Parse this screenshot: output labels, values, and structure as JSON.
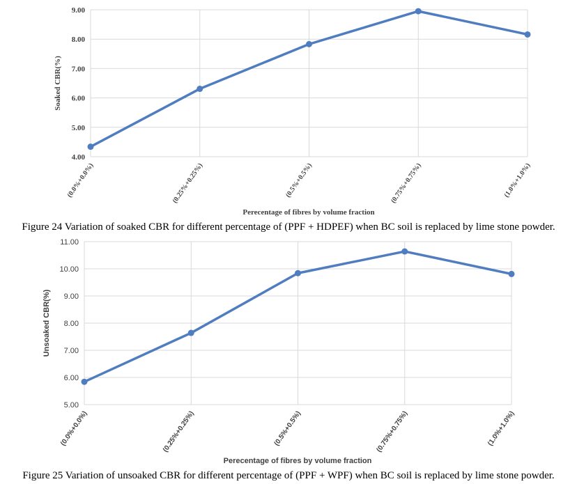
{
  "chart_data": [
    {
      "type": "line",
      "categories": [
        "(0.0%+0.0%)",
        "(0.25%+0.25%)",
        "(0.5%+0.5%)",
        "(0.75%+0.75%)",
        "(1.0%+1.0%)"
      ],
      "series": [
        {
          "values": [
            4.34,
            6.31,
            7.83,
            8.95,
            8.16
          ]
        }
      ],
      "xlabel": "Perecentage of fibres by volume fraction",
      "ylabel": "Soaked CBR(%)",
      "yticks": [
        "4.00",
        "5.00",
        "6.00",
        "7.00",
        "8.00",
        "9.00"
      ],
      "ylim": [
        4,
        9
      ],
      "grid": true,
      "color": "#4f7dbf"
    },
    {
      "type": "line",
      "categories": [
        "(0.0%+0.0%)",
        "(0.25%+0.25%)",
        "(0.5%+0.5%)",
        "(0.75%+0.75%)",
        "(1.0%+1.0%)"
      ],
      "series": [
        {
          "values": [
            5.84,
            7.64,
            9.84,
            10.64,
            9.81
          ]
        }
      ],
      "xlabel": "Perecentage of fibres by volume fraction",
      "ylabel": "Unsoaked CBR(%)",
      "yticks": [
        "5.00",
        "6.00",
        "7.00",
        "8.00",
        "9.00",
        "10.00",
        "11.00"
      ],
      "ylim": [
        5,
        11
      ],
      "grid": true,
      "color": "#4f7dbf"
    }
  ],
  "captions": {
    "fig24": "Figure 24 Variation of soaked CBR for different percentage of (PPF + HDPEF) when BC soil is replaced by lime stone powder.",
    "fig25": "Figure 25 Variation of unsoaked CBR for different percentage of (PPF + WPF) when BC soil is replaced by lime stone powder."
  }
}
